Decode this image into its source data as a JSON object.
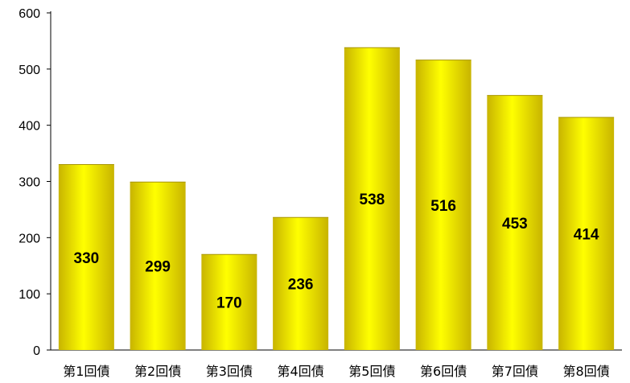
{
  "chart_data": {
    "type": "bar",
    "title": "",
    "xlabel": "",
    "ylabel": "",
    "categories": [
      "第1回債",
      "第2回債",
      "第3回債",
      "第4回債",
      "第5回債",
      "第6回債",
      "第7回債",
      "第8回債"
    ],
    "values": [
      330,
      299,
      170,
      236,
      538,
      516,
      453,
      414
    ],
    "data_labels": [
      "330",
      "299",
      "170",
      "236",
      "538",
      "516",
      "453",
      "414"
    ],
    "ylim": [
      0,
      600
    ],
    "yticks": [
      0,
      100,
      200,
      300,
      400,
      500,
      600
    ],
    "ytick_labels": [
      "0",
      "100",
      "200",
      "300",
      "400",
      "500",
      "600"
    ],
    "grid": false,
    "legend": "none",
    "bar_color": "#ffff00",
    "bar_shade_color": "#c8b400"
  }
}
